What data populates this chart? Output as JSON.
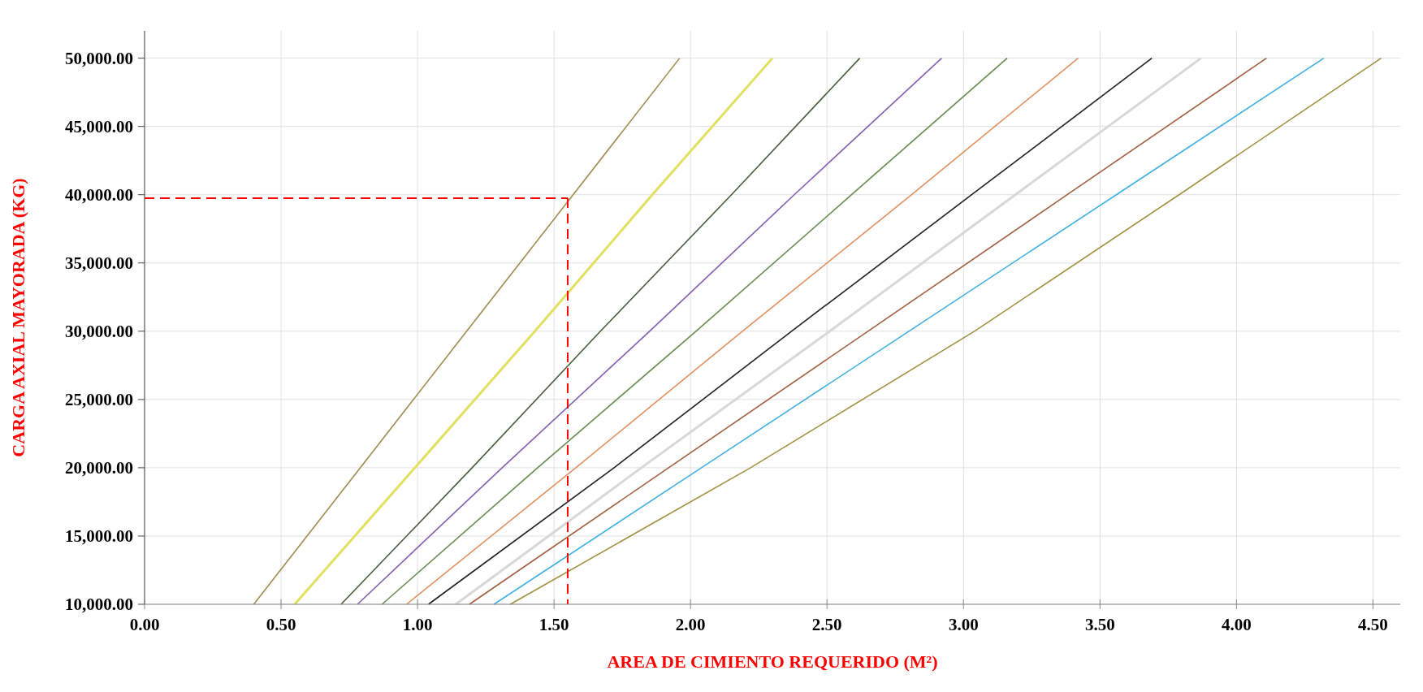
{
  "chart_data": {
    "type": "line",
    "xlabel": "AREA DE CIMIENTO REQUERIDO (M²)",
    "ylabel": "CARGA AXIAL MAYORADA (KG)",
    "xlim": [
      0,
      4.6
    ],
    "ylim": [
      10000,
      52000
    ],
    "xticks": [
      {
        "value": 0,
        "label": "0.00"
      },
      {
        "value": 0.5,
        "label": "0.50"
      },
      {
        "value": 1,
        "label": "1.00"
      },
      {
        "value": 1.5,
        "label": "1.50"
      },
      {
        "value": 2,
        "label": "2.00"
      },
      {
        "value": 2.5,
        "label": "2.50"
      },
      {
        "value": 3,
        "label": "3.00"
      },
      {
        "value": 3.5,
        "label": "3.50"
      },
      {
        "value": 4,
        "label": "4.00"
      },
      {
        "value": 4.5,
        "label": "4.50"
      }
    ],
    "yticks": [
      {
        "value": 10000,
        "label": "10,000.00"
      },
      {
        "value": 15000,
        "label": "15,000.00"
      },
      {
        "value": 20000,
        "label": "20,000.00"
      },
      {
        "value": 25000,
        "label": "25,000.00"
      },
      {
        "value": 30000,
        "label": "30,000.00"
      },
      {
        "value": 35000,
        "label": "35,000.00"
      },
      {
        "value": 40000,
        "label": "40,000.00"
      },
      {
        "value": 45000,
        "label": "45,000.00"
      },
      {
        "value": 50000,
        "label": "50,000.00"
      }
    ],
    "grid": true,
    "marker": "none",
    "line_style": "solid",
    "series": [
      {
        "color": "#a08a50",
        "x": [
          0.4,
          0.79,
          1.18,
          1.57,
          1.96
        ],
        "values": [
          10000,
          20000,
          30000,
          40000,
          50000
        ]
      },
      {
        "color": "#e0e060",
        "x": [
          0.55,
          0.99,
          1.43,
          1.86,
          2.3
        ],
        "values": [
          10000,
          20000,
          30000,
          40000,
          50000
        ]
      },
      {
        "color": "#4a5a40",
        "x": [
          0.72,
          1.2,
          1.67,
          2.15,
          2.62
        ],
        "values": [
          10000,
          20000,
          30000,
          40000,
          50000
        ]
      },
      {
        "color": "#8060b0",
        "x": [
          0.78,
          1.31,
          1.85,
          2.38,
          2.92
        ],
        "values": [
          10000,
          20000,
          30000,
          40000,
          50000
        ]
      },
      {
        "color": "#6a8a50",
        "x": [
          0.87,
          1.44,
          2.02,
          2.59,
          3.16
        ],
        "values": [
          10000,
          20000,
          30000,
          40000,
          50000
        ]
      },
      {
        "color": "#e09060",
        "x": [
          0.96,
          1.58,
          2.19,
          2.81,
          3.42
        ],
        "values": [
          10000,
          20000,
          30000,
          40000,
          50000
        ]
      },
      {
        "color": "#202020",
        "x": [
          1.04,
          1.72,
          2.37,
          3.03,
          3.69
        ],
        "values": [
          10000,
          20000,
          30000,
          40000,
          50000
        ]
      },
      {
        "color": "#d8d8d8",
        "x": [
          1.14,
          1.82,
          2.51,
          3.19,
          3.87
        ],
        "values": [
          10000,
          20000,
          30000,
          40000,
          50000
        ]
      },
      {
        "color": "#a06040",
        "x": [
          1.19,
          1.92,
          2.65,
          3.38,
          4.11
        ],
        "values": [
          10000,
          20000,
          30000,
          40000,
          50000
        ]
      },
      {
        "color": "#40b0e0",
        "x": [
          1.28,
          2.04,
          2.8,
          3.56,
          4.32
        ],
        "values": [
          10000,
          20000,
          30000,
          40000,
          50000
        ]
      },
      {
        "color": "#a09040",
        "x": [
          1.34,
          2.22,
          3.04,
          3.79,
          4.53
        ],
        "values": [
          10000,
          20000,
          30000,
          40000,
          50000
        ]
      }
    ],
    "ref_lines": [
      {
        "axis": "y",
        "value": 39750,
        "color": "#ff0000",
        "line_style": "dashed"
      },
      {
        "axis": "x",
        "value": 1.55,
        "color": "#ff0000",
        "line_style": "dashed"
      }
    ]
  }
}
